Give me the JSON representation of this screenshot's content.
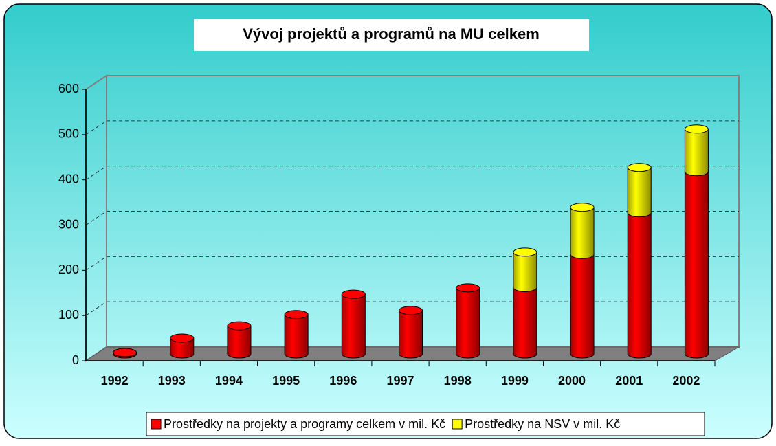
{
  "chart_data": {
    "type": "bar",
    "stacked": true,
    "title": "Vývoj projektů a programů na MU celkem",
    "categories": [
      "1992",
      "1993",
      "1994",
      "1995",
      "1996",
      "1997",
      "1998",
      "1999",
      "2000",
      "2001",
      "2002"
    ],
    "series": [
      {
        "name": "Prostředky na projekty a programy celkem v mil. Kč",
        "color": "#ff0000",
        "values": [
          3,
          35,
          62,
          87,
          132,
          96,
          146,
          147,
          220,
          312,
          403
        ]
      },
      {
        "name": "Prostředky na NSV v mil. Kč",
        "color": "#ffff00",
        "values": [
          0,
          0,
          0,
          0,
          0,
          0,
          0,
          78,
          104,
          100,
          94
        ]
      }
    ],
    "ylim": [
      0,
      600
    ],
    "yticks": [
      0,
      100,
      200,
      300,
      400,
      500,
      600
    ],
    "grid": true,
    "legend": "bottom"
  }
}
